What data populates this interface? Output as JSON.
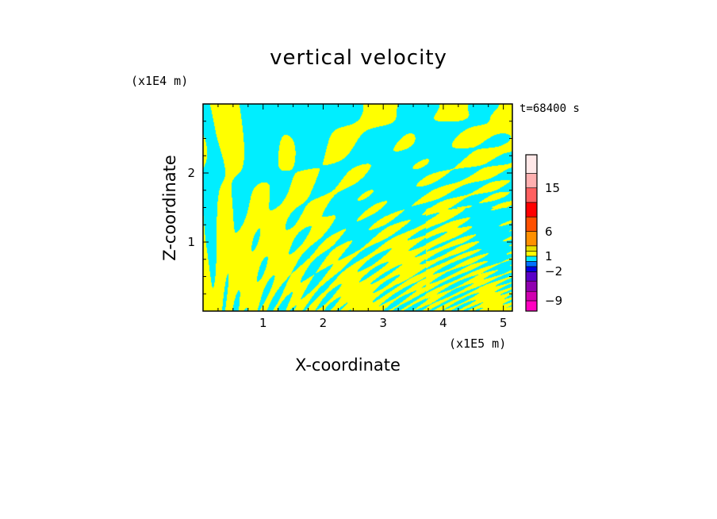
{
  "chart_data": {
    "type": "heatmap",
    "title": "vertical velocity",
    "xlabel": "X-coordinate",
    "ylabel": "Z-coordinate",
    "x_unit": "(x1E5 m)",
    "y_unit": "(x1E4 m)",
    "annotation": "t=68400 s",
    "xlim": [
      0,
      5.15
    ],
    "ylim": [
      0,
      3.0
    ],
    "x_ticks": [
      "1",
      "2",
      "3",
      "4",
      "5"
    ],
    "y_ticks": [
      "1",
      "2"
    ],
    "x_tick_values": [
      1,
      2,
      3,
      4,
      5
    ],
    "y_tick_values": [
      1,
      2
    ],
    "field_colors": {
      "positive": "#ffff00",
      "negative": "#00eeff"
    },
    "colorbar": {
      "levels": [
        -12,
        -9,
        -6,
        -4,
        -2,
        -1,
        0,
        1,
        2,
        4,
        6,
        9,
        12,
        15,
        20
      ],
      "colors": [
        "#ff00c0",
        "#d000b0",
        "#9000b0",
        "#5a00c8",
        "#0000e0",
        "#0070ff",
        "#00eeff",
        "#ffff00",
        "#e8e000",
        "#ff9000",
        "#ff5000",
        "#ff0000",
        "#ff6060",
        "#ffb0b0",
        "#ffe8e8"
      ],
      "labels": [
        "15",
        "6",
        "1",
        "−2",
        "−9"
      ],
      "label_values": [
        15,
        6,
        1,
        -2,
        -9
      ]
    }
  }
}
